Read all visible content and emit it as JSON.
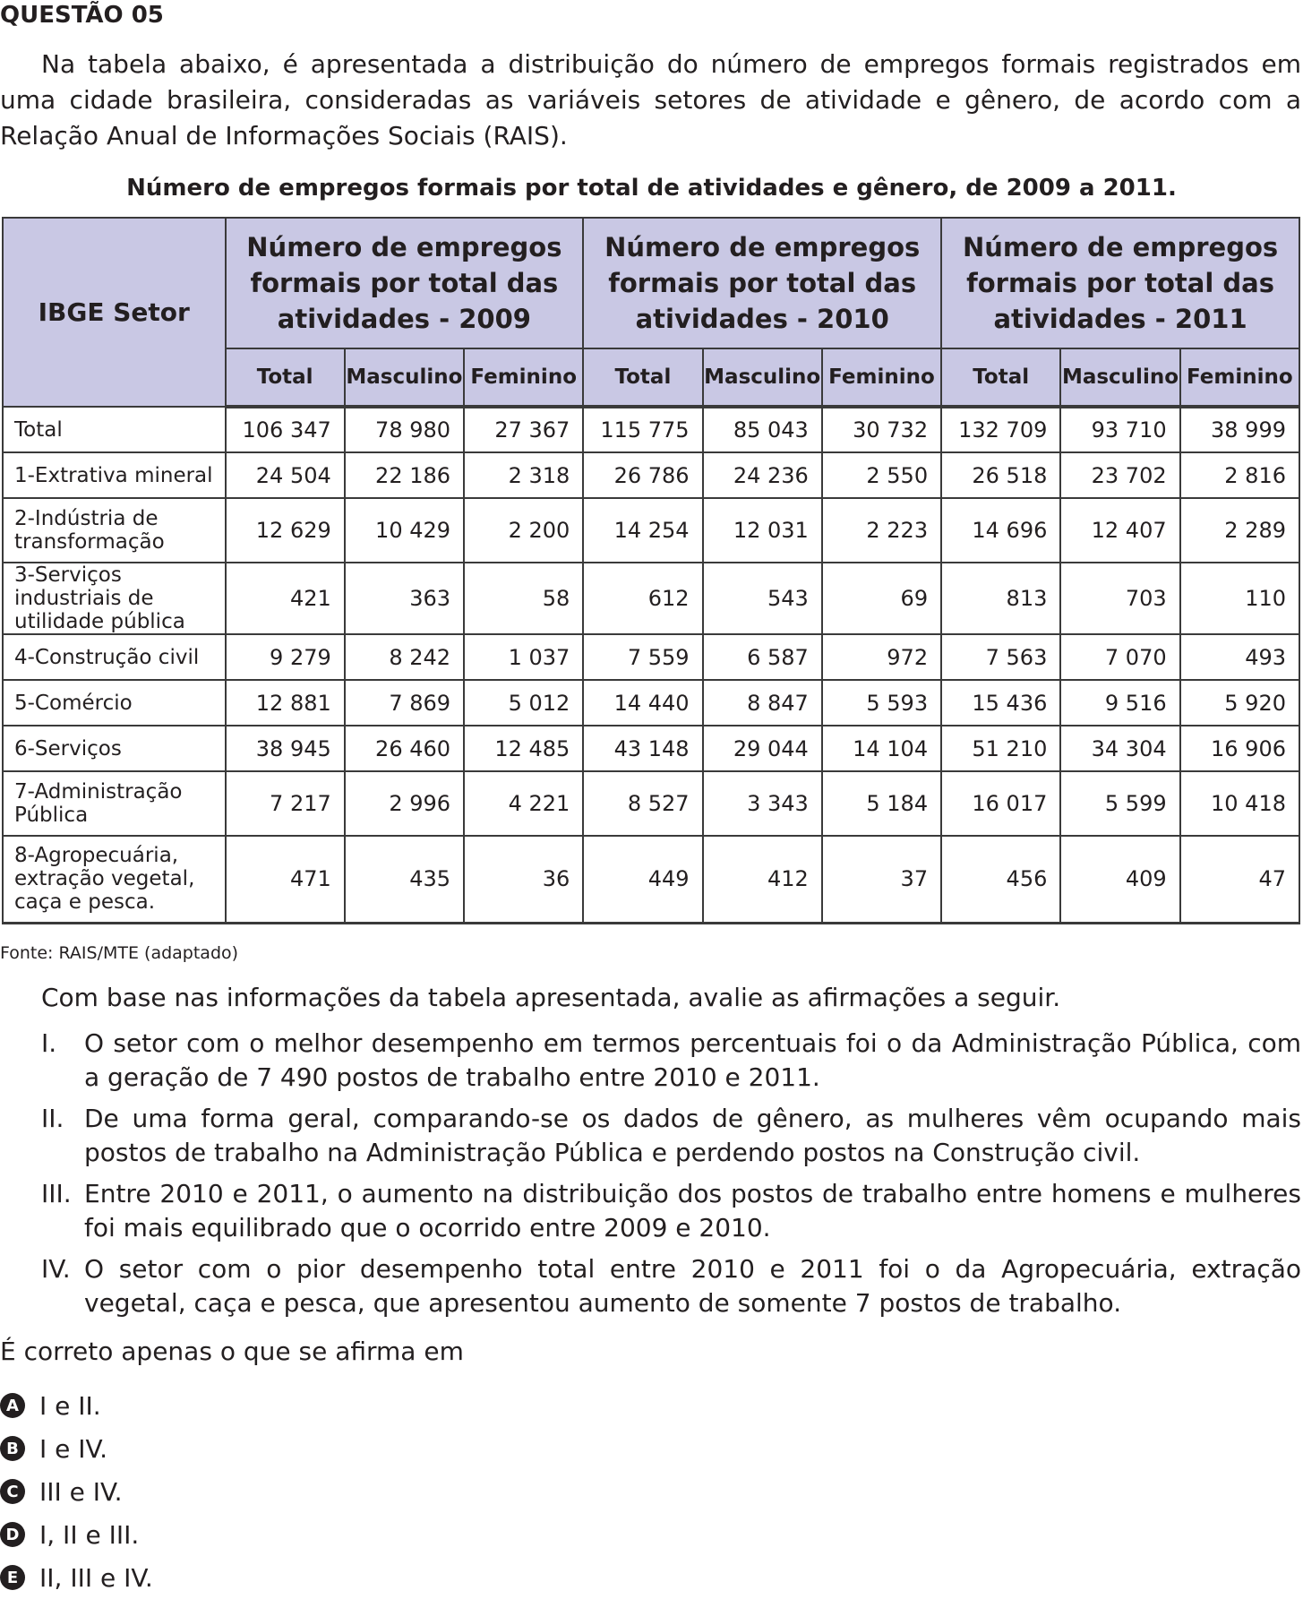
{
  "question_title": "QUESTÃO 05",
  "intro": "Na tabela abaixo, é apresentada a distribuição do número de empregos formais registrados em uma cidade brasileira, consideradas as variáveis setores de atividade e gênero, de acordo com a Relação Anual de Informações Sociais (RAIS).",
  "table": {
    "title": "Número de empregos formais por total de atividades e gênero, de 2009 a 2011.",
    "setor_header": "IBGE Setor",
    "year_headers": [
      "Número de empregos formais por total das atividades - 2009",
      "Número de empregos formais por total das atividades - 2010",
      "Número de empregos formais por total das atividades - 2011"
    ],
    "sub_headers": [
      "Total",
      "Masculino",
      "Feminino"
    ],
    "rows": [
      {
        "setor": "Total",
        "values": [
          "106 347",
          "78 980",
          "27 367",
          "115 775",
          "85 043",
          "30 732",
          "132 709",
          "93 710",
          "38 999"
        ]
      },
      {
        "setor": "1-Extrativa mineral",
        "values": [
          "24 504",
          "22 186",
          "2 318",
          "26 786",
          "24 236",
          "2 550",
          "26 518",
          "23 702",
          "2 816"
        ]
      },
      {
        "setor": "2-Indústria de transformação",
        "values": [
          "12 629",
          "10 429",
          "2 200",
          "14 254",
          "12 031",
          "2 223",
          "14 696",
          "12 407",
          "2 289"
        ]
      },
      {
        "setor": "3-Serviços industriais de utilidade pública",
        "values": [
          "421",
          "363",
          "58",
          "612",
          "543",
          "69",
          "813",
          "703",
          "110"
        ]
      },
      {
        "setor": "4-Construção civil",
        "values": [
          "9 279",
          "8 242",
          "1 037",
          "7 559",
          "6 587",
          "972",
          "7 563",
          "7 070",
          "493"
        ]
      },
      {
        "setor": "5-Comércio",
        "values": [
          "12 881",
          "7 869",
          "5 012",
          "14 440",
          "8 847",
          "5 593",
          "15 436",
          "9 516",
          "5 920"
        ]
      },
      {
        "setor": "6-Serviços",
        "values": [
          "38 945",
          "26 460",
          "12 485",
          "43 148",
          "29 044",
          "14 104",
          "51 210",
          "34 304",
          "16 906"
        ]
      },
      {
        "setor": "7-Administração Pública",
        "values": [
          "7 217",
          "2 996",
          "4 221",
          "8 527",
          "3 343",
          "5 184",
          "16 017",
          "5 599",
          "10 418"
        ]
      },
      {
        "setor": "8-Agropecuária, extração vegetal, caça e pesca.",
        "values": [
          "471",
          "435",
          "36",
          "449",
          "412",
          "37",
          "456",
          "409",
          "47"
        ]
      }
    ],
    "source": "Fonte: RAIS/MTE (adaptado)"
  },
  "lead": "Com base nas informações da tabela apresentada, avalie as afirmações a seguir.",
  "statements": [
    {
      "num": "I.",
      "text": "O setor com o melhor desempenho em termos percentuais foi o da Administração Pública, com a geração de 7 490 postos de trabalho entre 2010 e 2011."
    },
    {
      "num": "II.",
      "text": "De uma forma geral, comparando-se os dados de gênero, as mulheres vêm ocupando mais postos de trabalho na Administração Pública e perdendo postos na Construção civil."
    },
    {
      "num": "III.",
      "text": "Entre 2010 e 2011, o aumento na distribuição dos postos de trabalho entre homens e mulheres foi mais equilibrado que o ocorrido entre 2009 e 2010."
    },
    {
      "num": "IV.",
      "text": "O setor com o pior desempenho total entre 2010 e 2011 foi o da Agropecuária, extração vegetal, caça e pesca, que apresentou aumento de somente 7 postos de trabalho."
    }
  ],
  "prompt": "É correto apenas o que se afirma em",
  "options": [
    {
      "letter": "A",
      "text": "I e II."
    },
    {
      "letter": "B",
      "text": "I e IV."
    },
    {
      "letter": "C",
      "text": "III e IV."
    },
    {
      "letter": "D",
      "text": "I, II e III."
    },
    {
      "letter": "E",
      "text": "II, III e IV."
    }
  ]
}
